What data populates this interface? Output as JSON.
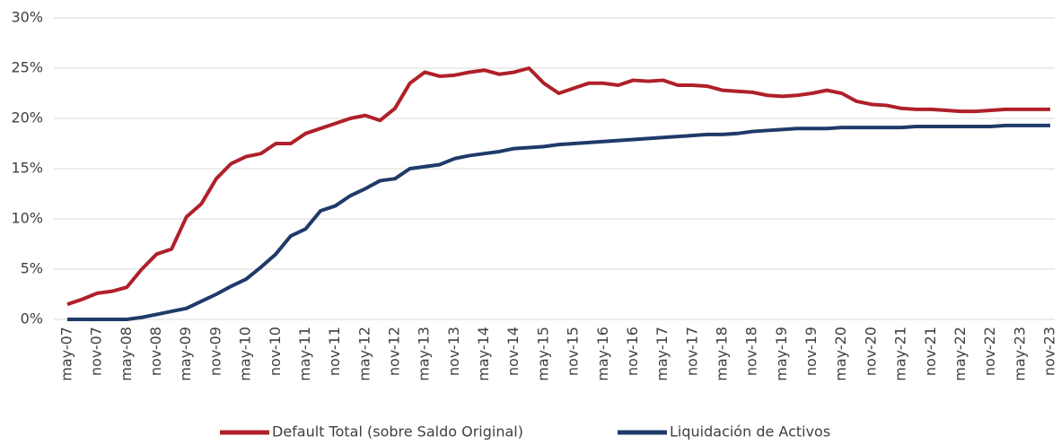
{
  "chart_data": {
    "type": "line",
    "categories": [
      "may-07",
      null,
      "nov-07",
      null,
      "may-08",
      null,
      "nov-08",
      null,
      "may-09",
      null,
      "nov-09",
      null,
      "may-10",
      null,
      "nov-10",
      null,
      "may-11",
      null,
      "nov-11",
      null,
      "may-12",
      null,
      "nov-12",
      null,
      "may-13",
      null,
      "nov-13",
      null,
      "may-14",
      null,
      "nov-14",
      null,
      "may-15",
      null,
      "nov-15",
      null,
      "may-16",
      null,
      "nov-16",
      null,
      "may-17",
      null,
      "nov-17",
      null,
      "may-18",
      null,
      "nov-18",
      null,
      "may-19",
      null,
      "nov-19",
      null,
      "may-20",
      null,
      "nov-20",
      null,
      "may-21",
      null,
      "nov-21",
      null,
      "may-22",
      null,
      "nov-22",
      null,
      "may-23",
      null,
      "nov-23"
    ],
    "series": [
      {
        "name": "Default Total (sobre Saldo Original)",
        "color": "#b0202a",
        "values": [
          1.5,
          2.0,
          2.6,
          2.8,
          3.2,
          5.0,
          6.5,
          7.0,
          10.2,
          11.5,
          14.0,
          15.5,
          16.2,
          16.5,
          17.5,
          17.5,
          18.5,
          19.0,
          19.5,
          20.0,
          20.3,
          19.8,
          21.0,
          23.5,
          24.6,
          24.2,
          24.3,
          24.6,
          24.8,
          24.4,
          24.6,
          25.0,
          23.5,
          22.5,
          23.0,
          23.5,
          23.5,
          23.3,
          23.8,
          23.7,
          23.8,
          23.3,
          23.3,
          23.2,
          22.8,
          22.7,
          22.6,
          22.3,
          22.2,
          22.3,
          22.5,
          22.8,
          22.5,
          21.7,
          21.4,
          21.3,
          21.0,
          20.9,
          20.9,
          20.8,
          20.7,
          20.7,
          20.8,
          20.9,
          20.9,
          20.9,
          20.9
        ]
      },
      {
        "name": "Liquidación de Activos",
        "color": "#1f3a68",
        "values": [
          0,
          0,
          0,
          0,
          0,
          0.2,
          0.5,
          0.8,
          1.1,
          1.8,
          2.5,
          3.3,
          4.0,
          5.2,
          6.5,
          8.3,
          9.0,
          10.8,
          11.3,
          12.3,
          13.0,
          13.8,
          14.0,
          15.0,
          15.2,
          15.4,
          16.0,
          16.3,
          16.5,
          16.7,
          17.0,
          17.1,
          17.2,
          17.4,
          17.5,
          17.6,
          17.7,
          17.8,
          17.9,
          18.0,
          18.1,
          18.2,
          18.3,
          18.4,
          18.4,
          18.5,
          18.7,
          18.8,
          18.9,
          19.0,
          19.0,
          19.0,
          19.1,
          19.1,
          19.1,
          19.1,
          19.1,
          19.2,
          19.2,
          19.2,
          19.2,
          19.2,
          19.2,
          19.3,
          19.3,
          19.3,
          19.3
        ]
      }
    ],
    "ylim": [
      0,
      30
    ],
    "yticks": [
      {
        "value": 0,
        "label": "0%"
      },
      {
        "value": 5,
        "label": "5%"
      },
      {
        "value": 10,
        "label": "10%"
      },
      {
        "value": 15,
        "label": "15%"
      },
      {
        "value": 20,
        "label": "20%"
      },
      {
        "value": 25,
        "label": "25%"
      },
      {
        "value": 30,
        "label": "30%"
      }
    ],
    "grid": true,
    "legend": "bottom"
  }
}
